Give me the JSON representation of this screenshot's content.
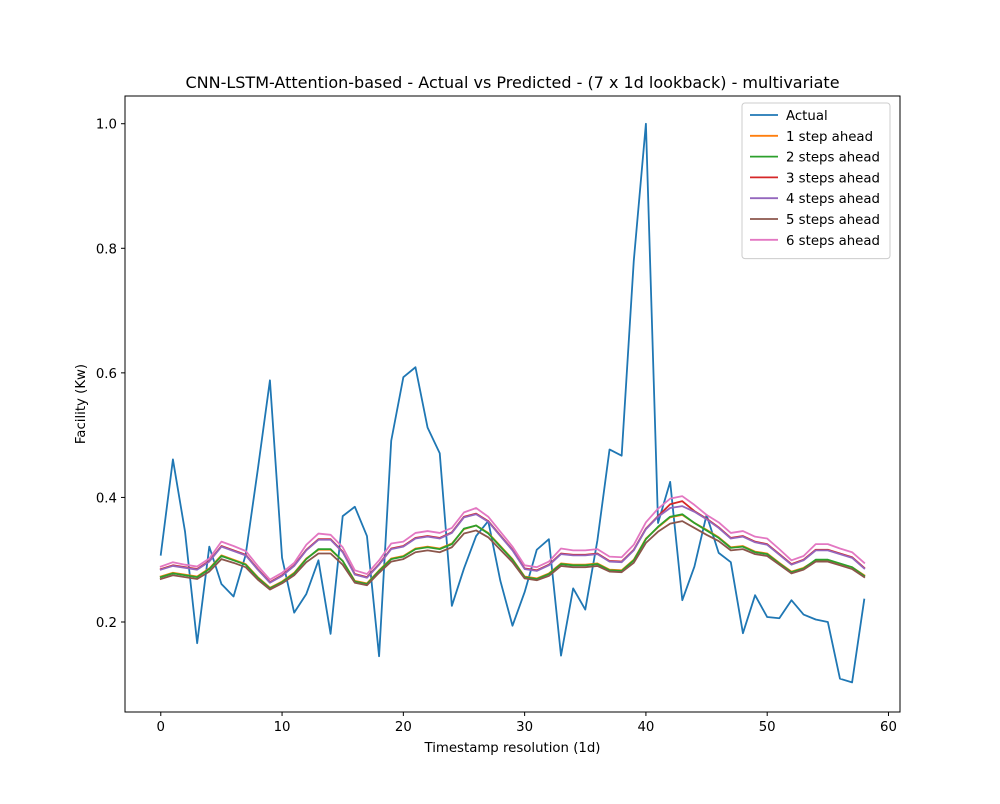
{
  "chart_data": {
    "type": "line",
    "title": "CNN-LSTM-Attention-based - Actual vs Predicted - (7 x 1d lookback) - multivariate",
    "xlabel": "Timestamp resolution (1d)",
    "ylabel": "Facility (Kw)",
    "xlim": [
      -2.95,
      60.95
    ],
    "ylim": [
      0.0555,
      1.0445
    ],
    "xticks": [
      0,
      10,
      20,
      30,
      40,
      50,
      60
    ],
    "yticks": [
      0.2,
      0.4,
      0.6,
      0.8,
      1.0
    ],
    "xtick_labels": [
      "0",
      "10",
      "20",
      "30",
      "40",
      "50",
      "60"
    ],
    "ytick_labels": [
      "0.2",
      "0.4",
      "0.6",
      "0.8",
      "1.0"
    ],
    "grid": false,
    "legend_position": "top-right",
    "series": [
      {
        "name": "Actual",
        "color": "#1f77b4",
        "values": [
          0.308,
          0.461,
          0.345,
          0.166,
          0.321,
          0.261,
          0.241,
          0.308,
          0.445,
          0.588,
          0.303,
          0.215,
          0.245,
          0.299,
          0.181,
          0.37,
          0.385,
          0.338,
          0.145,
          0.491,
          0.593,
          0.609,
          0.512,
          0.471,
          0.226,
          0.286,
          0.338,
          0.362,
          0.266,
          0.194,
          0.248,
          0.316,
          0.333,
          0.146,
          0.254,
          0.22,
          0.331,
          0.477,
          0.467,
          0.78,
          1.0,
          0.359,
          0.425,
          0.235,
          0.289,
          0.372,
          0.311,
          0.296,
          0.182,
          0.243,
          0.208,
          0.206,
          0.235,
          0.212,
          0.204,
          0.2,
          0.109,
          0.103,
          0.236
        ]
      },
      {
        "name": "1 step ahead",
        "color": "#ff7f0e",
        "values": [
          0.273,
          0.279,
          0.276,
          0.273,
          0.286,
          0.307,
          0.3,
          0.293,
          0.272,
          0.255,
          0.265,
          0.279,
          0.302,
          0.316,
          0.316,
          0.298,
          0.266,
          0.262,
          0.283,
          0.302,
          0.306,
          0.318,
          0.321,
          0.318,
          0.326,
          0.349,
          0.355,
          0.343,
          0.322,
          0.301,
          0.273,
          0.27,
          0.278,
          0.294,
          0.292,
          0.292,
          0.294,
          0.284,
          0.283,
          0.3,
          0.334,
          0.352,
          0.368,
          0.372,
          0.359,
          0.348,
          0.336,
          0.32,
          0.322,
          0.313,
          0.31,
          0.295,
          0.281,
          0.287,
          0.299,
          0.299,
          0.293,
          0.288,
          0.275
        ]
      },
      {
        "name": "2 steps ahead",
        "color": "#2ca02c",
        "values": [
          0.272,
          0.278,
          0.275,
          0.272,
          0.285,
          0.306,
          0.299,
          0.292,
          0.271,
          0.254,
          0.264,
          0.278,
          0.301,
          0.317,
          0.317,
          0.298,
          0.265,
          0.261,
          0.282,
          0.301,
          0.305,
          0.317,
          0.32,
          0.317,
          0.325,
          0.35,
          0.355,
          0.342,
          0.321,
          0.3,
          0.272,
          0.269,
          0.277,
          0.293,
          0.291,
          0.291,
          0.293,
          0.283,
          0.282,
          0.299,
          0.333,
          0.353,
          0.369,
          0.373,
          0.359,
          0.347,
          0.335,
          0.319,
          0.321,
          0.312,
          0.309,
          0.294,
          0.28,
          0.286,
          0.3,
          0.3,
          0.294,
          0.288,
          0.274
        ]
      },
      {
        "name": "3 steps ahead",
        "color": "#d62728",
        "values": [
          0.285,
          0.291,
          0.288,
          0.285,
          0.298,
          0.322,
          0.315,
          0.308,
          0.285,
          0.264,
          0.275,
          0.291,
          0.316,
          0.333,
          0.333,
          0.313,
          0.277,
          0.272,
          0.293,
          0.318,
          0.322,
          0.335,
          0.338,
          0.335,
          0.344,
          0.369,
          0.374,
          0.362,
          0.339,
          0.316,
          0.286,
          0.283,
          0.292,
          0.31,
          0.308,
          0.308,
          0.31,
          0.298,
          0.297,
          0.316,
          0.35,
          0.37,
          0.389,
          0.394,
          0.378,
          0.366,
          0.352,
          0.335,
          0.338,
          0.329,
          0.325,
          0.309,
          0.293,
          0.3,
          0.316,
          0.316,
          0.31,
          0.304,
          0.287
        ]
      },
      {
        "name": "4 steps ahead",
        "color": "#9467bd",
        "values": [
          0.284,
          0.29,
          0.287,
          0.284,
          0.297,
          0.321,
          0.314,
          0.307,
          0.284,
          0.263,
          0.274,
          0.29,
          0.315,
          0.332,
          0.332,
          0.312,
          0.276,
          0.271,
          0.292,
          0.317,
          0.321,
          0.334,
          0.337,
          0.334,
          0.343,
          0.368,
          0.373,
          0.361,
          0.338,
          0.315,
          0.285,
          0.282,
          0.291,
          0.309,
          0.307,
          0.307,
          0.309,
          0.297,
          0.296,
          0.315,
          0.349,
          0.369,
          0.383,
          0.386,
          0.377,
          0.365,
          0.351,
          0.334,
          0.337,
          0.328,
          0.324,
          0.308,
          0.292,
          0.299,
          0.315,
          0.315,
          0.309,
          0.303,
          0.286
        ]
      },
      {
        "name": "5 steps ahead",
        "color": "#8c564b",
        "values": [
          0.269,
          0.275,
          0.272,
          0.269,
          0.281,
          0.301,
          0.295,
          0.288,
          0.268,
          0.252,
          0.262,
          0.275,
          0.296,
          0.31,
          0.31,
          0.292,
          0.263,
          0.259,
          0.279,
          0.297,
          0.301,
          0.312,
          0.315,
          0.312,
          0.32,
          0.342,
          0.347,
          0.336,
          0.316,
          0.296,
          0.27,
          0.267,
          0.274,
          0.29,
          0.288,
          0.288,
          0.29,
          0.281,
          0.28,
          0.295,
          0.327,
          0.345,
          0.358,
          0.362,
          0.351,
          0.34,
          0.33,
          0.315,
          0.317,
          0.309,
          0.306,
          0.292,
          0.278,
          0.284,
          0.297,
          0.297,
          0.291,
          0.285,
          0.272
        ]
      },
      {
        "name": "6 steps ahead",
        "color": "#e377c2",
        "values": [
          0.289,
          0.296,
          0.292,
          0.289,
          0.302,
          0.329,
          0.322,
          0.314,
          0.29,
          0.268,
          0.279,
          0.295,
          0.324,
          0.342,
          0.34,
          0.32,
          0.283,
          0.277,
          0.299,
          0.326,
          0.329,
          0.343,
          0.346,
          0.343,
          0.351,
          0.376,
          0.383,
          0.369,
          0.345,
          0.321,
          0.291,
          0.288,
          0.297,
          0.318,
          0.315,
          0.315,
          0.317,
          0.305,
          0.304,
          0.324,
          0.36,
          0.382,
          0.398,
          0.402,
          0.388,
          0.372,
          0.36,
          0.343,
          0.346,
          0.337,
          0.334,
          0.317,
          0.299,
          0.306,
          0.325,
          0.325,
          0.318,
          0.312,
          0.295
        ]
      }
    ]
  }
}
